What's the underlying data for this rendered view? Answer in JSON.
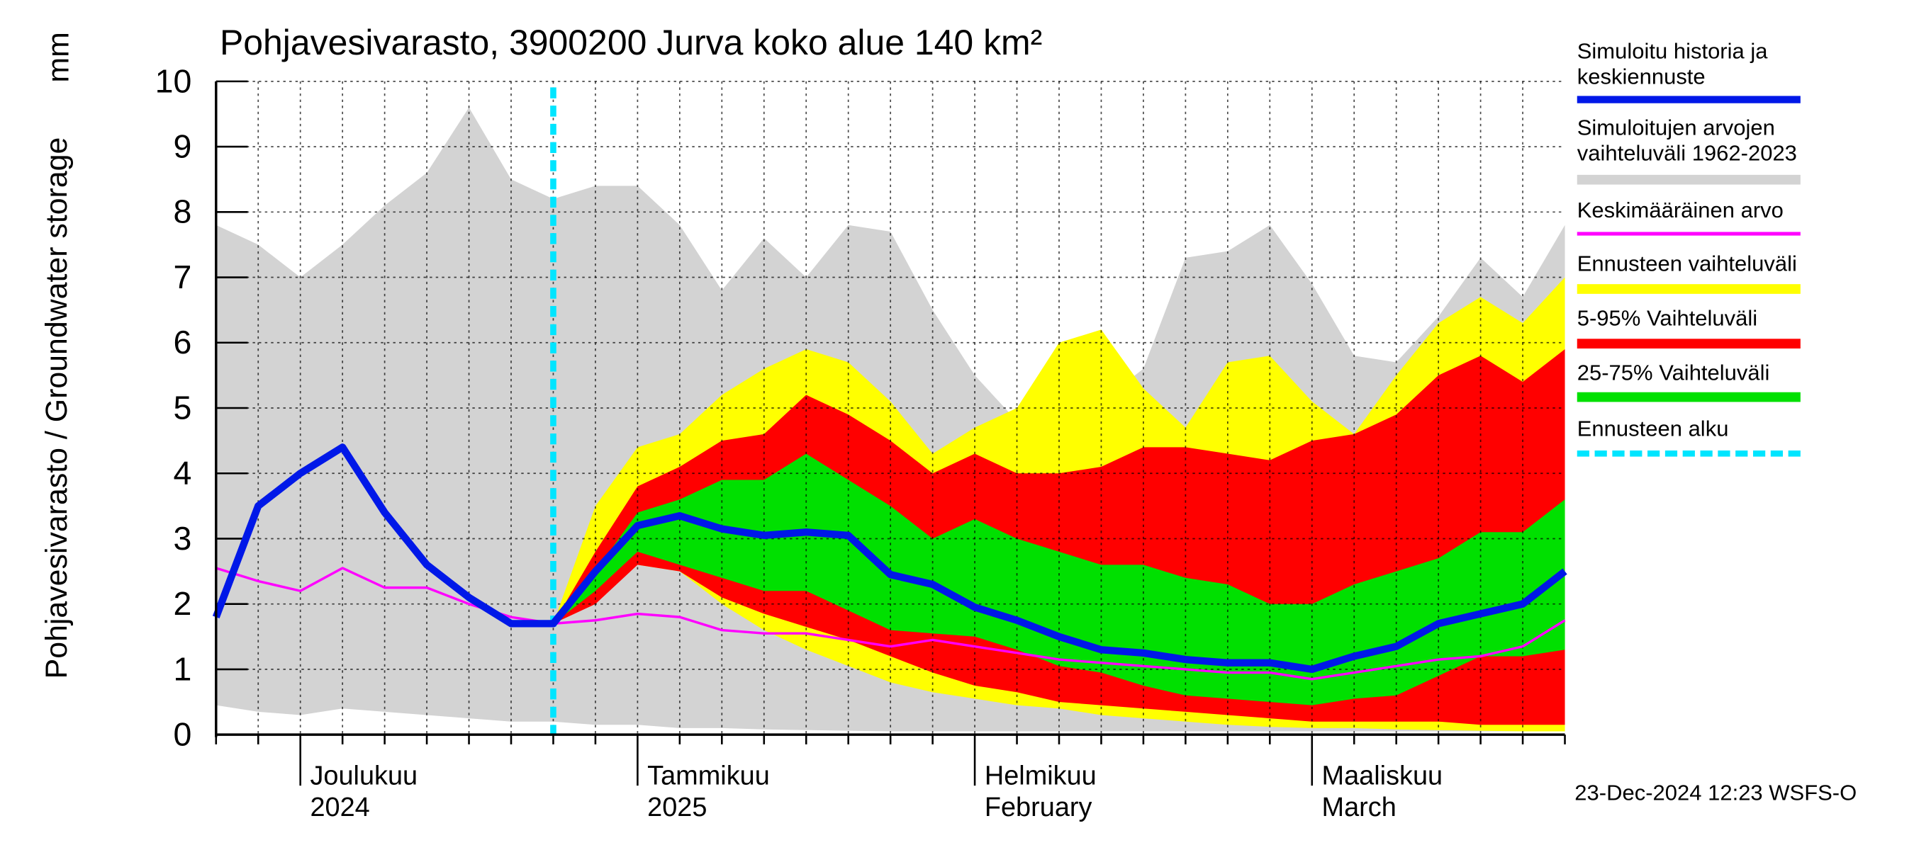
{
  "chart_data": {
    "type": "band-line",
    "title": "Pohjavesivarasto, 3900200 Jurva koko alue 140 km²",
    "y_label": "Pohjavesivarasto / Groundwater storage",
    "y_unit": "mm",
    "footer": "23-Dec-2024 12:23 WSFS-O",
    "ylim": [
      0,
      10
    ],
    "yticks": [
      0,
      1,
      2,
      3,
      4,
      5,
      6,
      7,
      8,
      9,
      10
    ],
    "grid": true,
    "legend": "right",
    "categories": [
      null,
      null,
      "Joulukuu\n2024",
      null,
      null,
      null,
      null,
      null,
      null,
      null,
      "Tammikuu\n2025",
      null,
      null,
      null,
      null,
      null,
      null,
      null,
      "Helmikuu\nFebruary",
      null,
      null,
      null,
      null,
      null,
      null,
      null,
      "Maaliskuu\nMarch",
      null,
      null,
      null,
      null,
      null,
      null
    ],
    "series": [
      {
        "name": "Simuloitu historia ja\nkeskiennuste",
        "kind": "line",
        "color": "#0018e8",
        "width": 6,
        "values": [
          1.8,
          3.5,
          4.0,
          4.4,
          3.4,
          2.6,
          2.1,
          1.7,
          1.7,
          2.5,
          3.2,
          3.35,
          3.15,
          3.05,
          3.1,
          3.05,
          2.45,
          2.3,
          1.95,
          1.75,
          1.5,
          1.3,
          1.25,
          1.15,
          1.1,
          1.1,
          1.0,
          1.2,
          1.35,
          1.7,
          1.85,
          2.0,
          2.5
        ]
      },
      {
        "name": "Simuloitujen arvojen\nvaihteluväli 1962-2023",
        "kind": "band",
        "color": "#d3d3d3",
        "upper": [
          7.8,
          7.5,
          7.0,
          7.5,
          8.1,
          8.6,
          9.6,
          8.5,
          8.2,
          8.4,
          8.4,
          7.8,
          6.8,
          7.6,
          7.0,
          7.8,
          7.7,
          6.5,
          5.5,
          4.8,
          5.2,
          5.1,
          5.6,
          7.3,
          7.4,
          7.8,
          6.9,
          5.8,
          5.7,
          6.4,
          7.3,
          6.7,
          7.8
        ],
        "lower": [
          0.45,
          0.35,
          0.3,
          0.4,
          0.35,
          0.3,
          0.25,
          0.2,
          0.2,
          0.15,
          0.15,
          0.1,
          0.1,
          0.08,
          0.07,
          0.06,
          0.05,
          0.05,
          0.05,
          0.05,
          0.05,
          0.05,
          0.05,
          0.05,
          0.05,
          0.05,
          0.05,
          0.05,
          0.05,
          0.05,
          0.05,
          0.05,
          0.05
        ]
      },
      {
        "name": "Keskimääräinen arvo",
        "kind": "line",
        "color": "#ff00ff",
        "width": 2,
        "values": [
          2.55,
          2.35,
          2.2,
          2.55,
          2.25,
          2.25,
          2.0,
          1.8,
          1.7,
          1.75,
          1.85,
          1.8,
          1.6,
          1.55,
          1.55,
          1.45,
          1.35,
          1.45,
          1.35,
          1.25,
          1.15,
          1.1,
          1.05,
          1.0,
          0.95,
          0.95,
          0.85,
          0.95,
          1.05,
          1.15,
          1.2,
          1.35,
          1.75
        ]
      },
      {
        "name": "Ennusteen vaihteluväli",
        "kind": "band",
        "color": "#ffff00",
        "upper": [
          null,
          null,
          null,
          null,
          null,
          null,
          null,
          null,
          1.7,
          3.5,
          4.4,
          4.6,
          5.2,
          5.6,
          5.9,
          5.7,
          5.1,
          4.3,
          4.7,
          5.0,
          6.0,
          6.2,
          5.3,
          4.7,
          5.7,
          5.8,
          5.1,
          4.6,
          5.5,
          6.3,
          6.7,
          6.3,
          7.0
        ],
        "lower": [
          null,
          null,
          null,
          null,
          null,
          null,
          null,
          null,
          1.7,
          2.2,
          2.6,
          2.5,
          2.0,
          1.6,
          1.3,
          1.05,
          0.8,
          0.65,
          0.55,
          0.45,
          0.4,
          0.3,
          0.25,
          0.2,
          0.15,
          0.12,
          0.1,
          0.1,
          0.08,
          0.07,
          0.06,
          0.05,
          0.05
        ]
      },
      {
        "name": "5-95% Vaihteluväli",
        "kind": "band",
        "color": "#ff0000",
        "upper": [
          null,
          null,
          null,
          null,
          null,
          null,
          null,
          null,
          1.7,
          2.8,
          3.8,
          4.1,
          4.5,
          4.6,
          5.2,
          4.9,
          4.5,
          4.0,
          4.3,
          4.0,
          4.0,
          4.1,
          4.4,
          4.4,
          4.3,
          4.2,
          4.5,
          4.6,
          4.9,
          5.5,
          5.8,
          5.4,
          5.9
        ],
        "lower": [
          null,
          null,
          null,
          null,
          null,
          null,
          null,
          null,
          1.7,
          2.0,
          2.6,
          2.5,
          2.1,
          1.85,
          1.65,
          1.45,
          1.2,
          0.95,
          0.75,
          0.65,
          0.5,
          0.45,
          0.4,
          0.35,
          0.3,
          0.25,
          0.2,
          0.2,
          0.2,
          0.2,
          0.15,
          0.15,
          0.15
        ]
      },
      {
        "name": "25-75% Vaihteluväli",
        "kind": "band",
        "color": "#00e000",
        "upper": [
          null,
          null,
          null,
          null,
          null,
          null,
          null,
          null,
          1.7,
          2.5,
          3.4,
          3.6,
          3.9,
          3.9,
          4.3,
          3.9,
          3.5,
          3.0,
          3.3,
          3.0,
          2.8,
          2.6,
          2.6,
          2.4,
          2.3,
          2.0,
          2.0,
          2.3,
          2.5,
          2.7,
          3.1,
          3.1,
          3.6
        ],
        "lower": [
          null,
          null,
          null,
          null,
          null,
          null,
          null,
          null,
          1.7,
          2.2,
          2.8,
          2.6,
          2.4,
          2.2,
          2.2,
          1.9,
          1.6,
          1.55,
          1.5,
          1.3,
          1.05,
          0.95,
          0.75,
          0.6,
          0.55,
          0.5,
          0.45,
          0.55,
          0.6,
          0.9,
          1.2,
          1.2,
          1.3
        ]
      }
    ],
    "forecast_start_label": "Ennusteen alku",
    "forecast_start_color": "#00e5ff"
  }
}
